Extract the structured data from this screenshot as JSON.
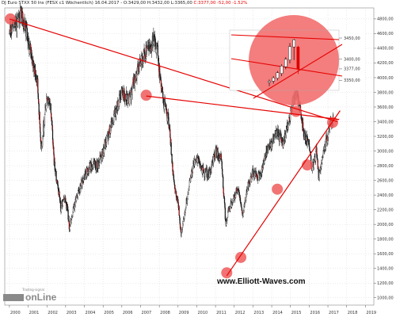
{
  "header": {
    "instrument": "DJ Euro STXX 50 Ins (FESX c1 Wöchentlich)",
    "date": "16.04.2017",
    "ohlc": "- O:3429,00 H:3432,00 L:3365,00",
    "close_change": "C:3377,00 -52,00 -1.52%"
  },
  "watermark": "www.Elliott-Waves.com",
  "logo": {
    "small": "Trading-signal",
    "big": "onLine"
  },
  "colors": {
    "background": "#ffffff",
    "candles": "#1a1a1a",
    "down_accent": "#cc0000",
    "trendline": "#e60000",
    "marker": "#ee5a5a",
    "inset_circle": "#f26b6b",
    "grid": "#cccccc"
  },
  "chart_data": {
    "type": "line",
    "title": "",
    "xlabel": "",
    "ylabel": "",
    "y_ticks": [
      1000,
      1200,
      1400,
      1600,
      1800,
      2000,
      2200,
      2400,
      2600,
      2800,
      3000,
      3200,
      3400,
      3600,
      3800,
      4000,
      4200,
      4400,
      4600,
      4800
    ],
    "x_ticks": [
      "2000",
      "2001",
      "2002",
      "2003",
      "2004",
      "2005",
      "2006",
      "2007",
      "2008",
      "2009",
      "2010",
      "2011",
      "2012",
      "2013",
      "2014",
      "2015",
      "2016",
      "2017",
      "2018",
      "2019"
    ],
    "ylim": [
      900,
      4950
    ],
    "xlim": [
      1999.75,
      2019.45
    ],
    "grid": true,
    "series": [
      {
        "x": [
          2000.0,
          2000.2,
          2000.4,
          2000.6,
          2000.85,
          2001.0,
          2001.2,
          2001.5,
          2001.7,
          2001.85,
          2002.0,
          2002.2,
          2002.4,
          2002.6,
          2002.75,
          2002.9,
          2003.1,
          2003.2,
          2003.5,
          2003.9,
          2004.3,
          2004.7,
          2005.0,
          2005.5,
          2006.0,
          2006.4,
          2006.7,
          2007.0,
          2007.4,
          2007.7,
          2007.9,
          2008.0,
          2008.2,
          2008.5,
          2008.8,
          2009.0,
          2009.17,
          2009.5,
          2009.8,
          2010.0,
          2010.4,
          2010.7,
          2011.0,
          2011.3,
          2011.55,
          2011.7,
          2011.9,
          2012.2,
          2012.45,
          2012.7,
          2013.0,
          2013.4,
          2013.7,
          2014.0,
          2014.3,
          2014.6,
          2014.8,
          2015.0,
          2015.15,
          2015.3,
          2015.55,
          2015.75,
          2016.0,
          2016.15,
          2016.4,
          2016.5,
          2016.75,
          2017.0,
          2017.2,
          2017.3
        ],
        "values": [
          4600,
          4800,
          4700,
          4900,
          4700,
          4450,
          4300,
          3900,
          3000,
          3400,
          3750,
          3600,
          2800,
          2500,
          2200,
          2400,
          2200,
          1950,
          2300,
          2600,
          2800,
          2800,
          3000,
          3400,
          3800,
          3700,
          4000,
          4200,
          4400,
          4500,
          4400,
          4100,
          3700,
          3400,
          2500,
          2300,
          1850,
          2400,
          2800,
          2900,
          2700,
          2700,
          3000,
          2900,
          2000,
          2200,
          2300,
          2500,
          2100,
          2500,
          2700,
          2650,
          3000,
          3100,
          3250,
          3100,
          3300,
          3500,
          3700,
          3830,
          3500,
          3200,
          3100,
          2750,
          3000,
          2650,
          3000,
          3230,
          3430,
          3377
        ]
      }
    ],
    "inset": {
      "y_labels": [
        "3450,00",
        "3400,00",
        "3377,00",
        "3350,00"
      ],
      "y_values": [
        3450,
        3400,
        3377,
        3350
      ],
      "candles": [
        {
          "o": 3345,
          "h": 3352,
          "l": 3336,
          "c": 3348
        },
        {
          "o": 3348,
          "h": 3360,
          "l": 3342,
          "c": 3356
        },
        {
          "o": 3355,
          "h": 3372,
          "l": 3350,
          "c": 3368
        },
        {
          "o": 3366,
          "h": 3388,
          "l": 3360,
          "c": 3384
        },
        {
          "o": 3382,
          "h": 3405,
          "l": 3376,
          "c": 3400
        },
        {
          "o": 3398,
          "h": 3438,
          "l": 3390,
          "c": 3430
        },
        {
          "o": 3429,
          "h": 3448,
          "l": 3398,
          "c": 3446
        },
        {
          "o": 3429,
          "h": 3432,
          "l": 3365,
          "c": 3377
        }
      ]
    },
    "trendlines": [
      {
        "from": [
          2000.0,
          4800
        ],
        "to": [
          2017.5,
          3400
        ]
      },
      {
        "from": [
          2007.3,
          3750
        ],
        "to": [
          2017.6,
          3430
        ]
      },
      {
        "from": [
          2011.6,
          1300
        ],
        "to": [
          2017.65,
          3550
        ]
      }
    ],
    "markers": [
      {
        "x": 2000.05,
        "y": 4800
      },
      {
        "x": 2007.3,
        "y": 3760
      },
      {
        "x": 2011.6,
        "y": 1340
      },
      {
        "x": 2012.35,
        "y": 1550
      },
      {
        "x": 2014.3,
        "y": 2480
      },
      {
        "x": 2015.3,
        "y": 3540
      },
      {
        "x": 2015.9,
        "y": 2810
      },
      {
        "x": 2017.25,
        "y": 3390
      }
    ]
  }
}
